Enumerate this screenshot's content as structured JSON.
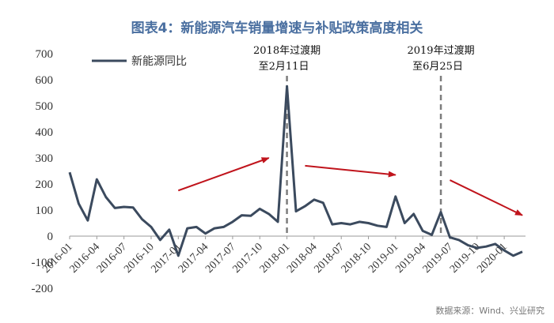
{
  "chart_data": {
    "type": "line",
    "title": "图表4：新能源汽车销量增速与补贴政策高度相关",
    "source": "数据来源：Wind、兴业研究",
    "series": [
      {
        "name": "新能源同比",
        "color": "#3b4a5e",
        "values": [
          245,
          125,
          60,
          218,
          150,
          108,
          112,
          110,
          65,
          35,
          -15,
          25,
          -75,
          30,
          35,
          10,
          30,
          35,
          55,
          80,
          78,
          105,
          85,
          55,
          575,
          95,
          115,
          140,
          128,
          45,
          50,
          45,
          55,
          50,
          40,
          35,
          152,
          50,
          85,
          20,
          5,
          92,
          -5,
          -15,
          -35,
          -45,
          -40,
          -30,
          -55,
          -75,
          -60
        ]
      }
    ],
    "x_start": "2016-01",
    "x_tick_labels": [
      "2016-01",
      "2016-04",
      "2016-07",
      "2016-10",
      "2017-01",
      "2017-04",
      "2017-07",
      "2017-10",
      "2018-01",
      "2018-04",
      "2018-07",
      "2018-10",
      "2019-01",
      "2019-04",
      "2019-07",
      "2019-10",
      "2020-01"
    ],
    "y_ticks": [
      -200,
      -100,
      0,
      100,
      200,
      300,
      400,
      500,
      600,
      700
    ],
    "ylim": [
      -200,
      700
    ],
    "grid": false,
    "legend_position": "top-left",
    "annotations": [
      {
        "line1": "2018年过渡期",
        "line2": "至2月11日",
        "x": "2018-01"
      },
      {
        "line1": "2019年过渡期",
        "line2": "至6月25日",
        "x": "2019-06"
      }
    ],
    "trend_arrows": [
      {
        "from": [
          "2017-01",
          175
        ],
        "to": [
          "2017-11",
          300
        ]
      },
      {
        "from": [
          "2018-03",
          270
        ],
        "to": [
          "2019-01",
          235
        ]
      },
      {
        "from": [
          "2019-07",
          215
        ],
        "to": [
          "2020-03",
          80
        ]
      }
    ],
    "arrow_color": "#c0141c"
  }
}
